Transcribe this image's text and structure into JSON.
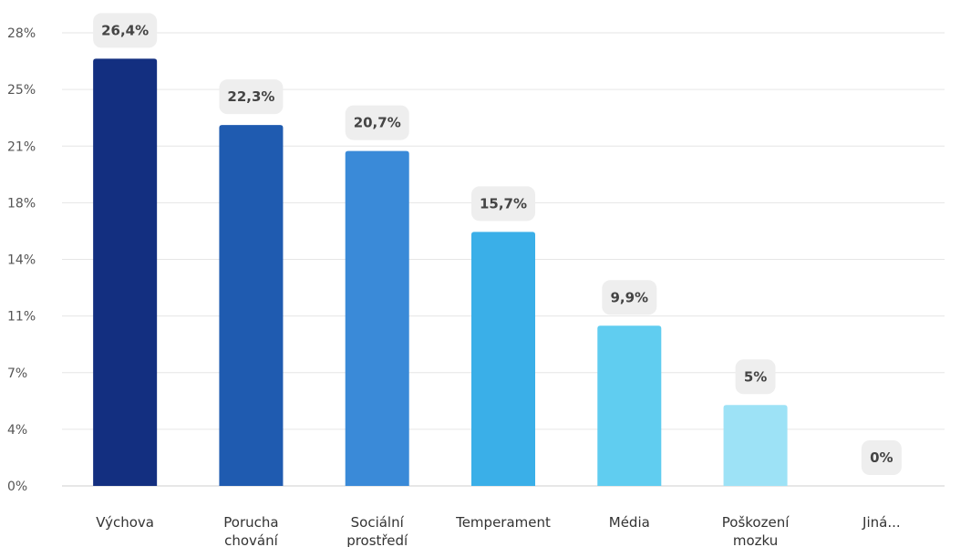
{
  "chart_data": {
    "type": "bar",
    "title": "",
    "xlabel": "",
    "ylabel": "",
    "grid": true,
    "legend": "none",
    "ylim": [
      0,
      28
    ],
    "y_ticks": [
      {
        "value": 0,
        "label": "0%"
      },
      {
        "value": 3.5,
        "label": "4%"
      },
      {
        "value": 7,
        "label": "7%"
      },
      {
        "value": 10.5,
        "label": "11%"
      },
      {
        "value": 14,
        "label": "14%"
      },
      {
        "value": 17.5,
        "label": "18%"
      },
      {
        "value": 21,
        "label": "21%"
      },
      {
        "value": 24.5,
        "label": "25%"
      },
      {
        "value": 28,
        "label": "28%"
      }
    ],
    "categories": [
      [
        "Výchova"
      ],
      [
        "Porucha",
        "chování"
      ],
      [
        "Sociální",
        "prostředí"
      ],
      [
        "Temperament"
      ],
      [
        "Média"
      ],
      [
        "Poškození",
        "mozku"
      ],
      [
        "Jiná..."
      ]
    ],
    "values": [
      26.4,
      22.3,
      20.7,
      15.7,
      9.9,
      5,
      0
    ],
    "value_labels": [
      "26,4%",
      "22,3%",
      "20,7%",
      "15,7%",
      "9,9%",
      "5%",
      "0%"
    ],
    "colors": [
      "#132f80",
      "#1f5bb0",
      "#3a8ad8",
      "#3aafe8",
      "#60cdf0",
      "#9de2f6",
      "#cfeefa"
    ],
    "label_badge_color": "#eeeeee",
    "grid_color": "#e6e6e6",
    "axis_color": "#cfcfcf"
  }
}
